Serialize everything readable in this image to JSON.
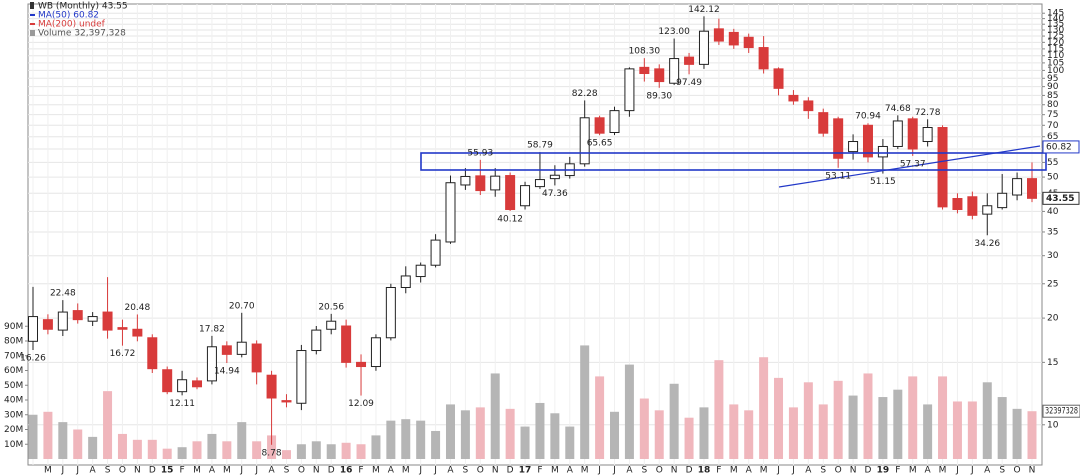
{
  "chart_data": {
    "type": "candlestick",
    "legend": [
      "WB (Monthly) 43.55",
      "MA(50) 60.82",
      "MA(200) undef",
      "Volume 32,397,328"
    ],
    "categories": [
      null,
      "M",
      "J",
      "J",
      "A",
      "S",
      "O",
      "N",
      "D",
      "15",
      "F",
      "M",
      "A",
      "M",
      "J",
      "J",
      "A",
      "S",
      "O",
      "N",
      "D",
      "16",
      "F",
      "M",
      "A",
      "M",
      "J",
      "J",
      "A",
      "S",
      "O",
      "N",
      "D",
      "17",
      "F",
      "M",
      "A",
      "M",
      "J",
      "J",
      "A",
      "S",
      "O",
      "N",
      "D",
      "18",
      "F",
      "M",
      "A",
      "M",
      "J",
      "J",
      "A",
      "S",
      "O",
      "N",
      "D",
      "19",
      "F",
      "M",
      "A",
      "M",
      "J",
      "J",
      "A",
      "S",
      "O",
      "N"
    ],
    "open": [
      17.2,
      19.8,
      18.5,
      21.0,
      19.6,
      20.8,
      18.8,
      18.6,
      17.6,
      14.3,
      12.4,
      13.3,
      13.3,
      16.7,
      15.8,
      16.9,
      13.8,
      11.7,
      11.5,
      16.2,
      18.6,
      19.0,
      15.0,
      14.6,
      17.6,
      24.4,
      26.2,
      28.2,
      32.8,
      47.5,
      50.4,
      46.0,
      50.5,
      41.5,
      47.0,
      49.5,
      50.5,
      54.5,
      73.5,
      66.8,
      77.0,
      102,
      101,
      92,
      109,
      104,
      131,
      128,
      124,
      116,
      101,
      85,
      82,
      76,
      73,
      59,
      70,
      57,
      61,
      73,
      63,
      69,
      43.5,
      44,
      39.3,
      41,
      44.5,
      49.5
    ],
    "high": [
      24.5,
      20.5,
      22.48,
      22.0,
      20.8,
      26.1,
      19.8,
      20.48,
      18.0,
      14.6,
      14.2,
      13.6,
      17.82,
      17.2,
      20.7,
      17.3,
      14.2,
      12.2,
      16.8,
      19.0,
      20.56,
      19.8,
      15.8,
      18.0,
      25.0,
      28.0,
      28.7,
      34.5,
      50.5,
      53.0,
      55.93,
      53.0,
      51.5,
      48.5,
      58.79,
      54.0,
      57.0,
      82.28,
      74.5,
      79.0,
      102,
      108.3,
      104,
      123.0,
      112,
      142.12,
      140,
      131,
      127,
      125,
      102,
      88,
      84,
      78,
      74,
      66,
      70.94,
      64,
      74.68,
      74,
      72.78,
      70,
      45,
      45.5,
      45,
      51,
      51.5,
      55
    ],
    "low": [
      16.26,
      18.0,
      17.8,
      19.3,
      19.0,
      17.5,
      16.72,
      17.2,
      14.0,
      12.2,
      12.11,
      12.6,
      13.0,
      14.94,
      15.5,
      13.0,
      8.78,
      11.2,
      11.0,
      15.8,
      18.0,
      14.5,
      12.09,
      14.2,
      17.3,
      23.5,
      25.2,
      27.8,
      32.4,
      46.0,
      44.5,
      44.0,
      40.12,
      40.5,
      46.3,
      47.36,
      49.5,
      53.5,
      65.65,
      65.7,
      74,
      93,
      89.3,
      91,
      97.49,
      101,
      118,
      115,
      112,
      98,
      85,
      80,
      73,
      65,
      53.11,
      56,
      55,
      51.15,
      60,
      57.37,
      61,
      40.5,
      39.5,
      38,
      34.26,
      40.5,
      43,
      42.5
    ],
    "close": [
      20.2,
      18.6,
      20.8,
      19.8,
      20.2,
      18.5,
      18.6,
      17.8,
      14.4,
      12.4,
      13.4,
      12.8,
      16.6,
      15.8,
      17.1,
      14.1,
      11.9,
      11.6,
      16.2,
      18.5,
      19.6,
      15.0,
      14.6,
      17.6,
      24.4,
      26.3,
      28.2,
      33.2,
      48.2,
      50.2,
      45.8,
      50.3,
      40.5,
      47.3,
      49.2,
      50.6,
      54.5,
      73.5,
      66.5,
      77.0,
      101,
      98,
      93,
      108,
      104,
      129,
      121,
      118,
      116,
      101,
      89,
      82,
      77,
      66.5,
      56.5,
      63,
      57,
      61,
      72,
      60,
      69,
      41.2,
      40.5,
      39,
      41.5,
      45,
      49.5,
      43.55
    ],
    "volume": [
      30000000,
      32000000,
      25000000,
      20000000,
      15000000,
      46000000,
      17000000,
      13000000,
      13000000,
      7000000,
      8000000,
      12000000,
      17000000,
      12000000,
      25000000,
      12000000,
      16000000,
      6000000,
      10000000,
      12000000,
      10000000,
      11000000,
      10000000,
      16000000,
      26000000,
      27000000,
      26000000,
      19000000,
      37000000,
      33000000,
      35000000,
      58000000,
      34000000,
      22000000,
      38000000,
      31000000,
      22000000,
      77000000,
      56000000,
      32000000,
      64000000,
      41000000,
      33000000,
      51000000,
      28000000,
      35000000,
      67000000,
      37000000,
      33000000,
      69000000,
      55000000,
      35000000,
      52000000,
      37000000,
      53000000,
      43000000,
      58000000,
      42000000,
      47000000,
      56000000,
      37000000,
      56000000,
      39000000,
      39000000,
      52000000,
      42000000,
      34000000,
      32397328
    ],
    "high_labels": [
      null,
      null,
      "22.48",
      null,
      null,
      null,
      null,
      "20.48",
      null,
      null,
      null,
      null,
      "17.82",
      null,
      "20.70",
      null,
      null,
      null,
      null,
      null,
      "20.56",
      null,
      null,
      null,
      null,
      null,
      null,
      null,
      null,
      null,
      "55.93",
      null,
      null,
      null,
      "58.79",
      null,
      null,
      "82.28",
      null,
      null,
      null,
      "108.30",
      null,
      "123.00",
      null,
      "142.12",
      null,
      null,
      null,
      null,
      null,
      null,
      null,
      null,
      null,
      null,
      "70.94",
      null,
      "74.68",
      null,
      "72.78",
      null,
      null,
      null,
      null,
      null,
      null,
      null
    ],
    "low_labels": [
      "16.26",
      null,
      null,
      null,
      null,
      null,
      "16.72",
      null,
      null,
      null,
      "12.11",
      null,
      null,
      "14.94",
      null,
      null,
      "8.78",
      null,
      null,
      null,
      null,
      null,
      "12.09",
      null,
      null,
      null,
      null,
      null,
      null,
      null,
      null,
      null,
      "40.12",
      null,
      null,
      "47.36",
      null,
      null,
      "65.65",
      null,
      null,
      null,
      "89.30",
      null,
      "97.49",
      null,
      null,
      null,
      null,
      null,
      null,
      null,
      null,
      null,
      "53.11",
      null,
      null,
      "51.15",
      null,
      "57.37",
      null,
      null,
      null,
      null,
      "34.26",
      null,
      null,
      null
    ],
    "ma50_last": 60.82,
    "ylim": [
      7.7,
      150
    ],
    "log_scale": true,
    "yticks": [
      10,
      15,
      20,
      25,
      30,
      35,
      40,
      45,
      50,
      55,
      60,
      65,
      70,
      75,
      80,
      85,
      90,
      95,
      100,
      105,
      110,
      115,
      120,
      125,
      130,
      135,
      140,
      145
    ],
    "y2lim": [
      0,
      300000000
    ],
    "y2ticks": [
      {
        "value": 10000000,
        "label": "10M"
      },
      {
        "value": 20000000,
        "label": "20M"
      },
      {
        "value": 30000000,
        "label": "30M"
      },
      {
        "value": 40000000,
        "label": "40M"
      },
      {
        "value": 50000000,
        "label": "50M"
      },
      {
        "value": 60000000,
        "label": "60M"
      },
      {
        "value": 70000000,
        "label": "70M"
      },
      {
        "value": 80000000,
        "label": "80M"
      },
      {
        "value": 90000000,
        "label": "90M"
      }
    ],
    "colors": {
      "up": "#ffffff",
      "down": "#d83b3b",
      "up_volume": "#b5b5b5",
      "down_volume": "#f0b6bc",
      "ma50": "#2238c8"
    },
    "grid": true
  }
}
